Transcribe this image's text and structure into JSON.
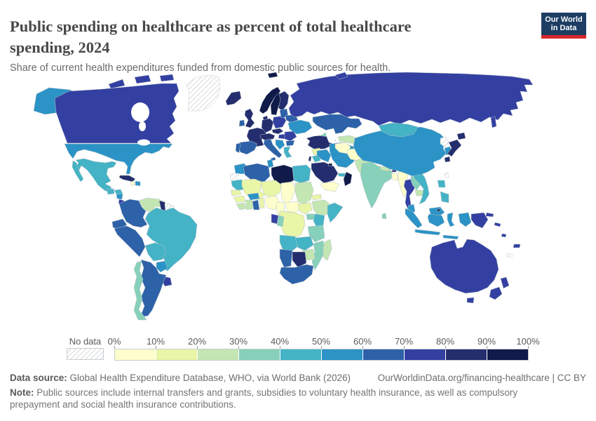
{
  "header": {
    "title": "Public spending on healthcare as percent of total healthcare spending, 2024",
    "subtitle": "Share of current health expenditures funded from domestic public sources for health.",
    "logo": {
      "line1": "Our World",
      "line2": "in Data",
      "bg_color": "#1d3d63",
      "accent_color": "#d7282f"
    }
  },
  "legend": {
    "no_data_label": "No data",
    "tick_labels": [
      "0%",
      "10%",
      "20%",
      "30%",
      "40%",
      "50%",
      "60%",
      "70%",
      "80%",
      "90%",
      "100%"
    ]
  },
  "footer": {
    "data_source_label": "Data source:",
    "data_source_text": " Global Health Expenditure Database, WHO, via World Bank (2026)",
    "link_text": "OurWorldinData.org/financing-healthcare | CC BY",
    "note_label": "Note:",
    "note_text": " Public sources include internal transfers and grants, subsidies to voluntary health insurance, as well as compulsory prepayment and social health insurance contributions."
  },
  "chart_data": {
    "type": "heatmap",
    "subtype": "world-choropleth",
    "title": "Public spending on healthcare as percent of total healthcare spending, 2024",
    "unit": "share of total health spending (%)",
    "legend_position": "bottom",
    "bins": [
      "0-10%",
      "10-20%",
      "20-30%",
      "30-40%",
      "40-50%",
      "50-60%",
      "60-70%",
      "70-80%",
      "80-90%",
      "90-100%"
    ],
    "bin_colors": [
      "#fdfecc",
      "#e9f5a7",
      "#c3e6b2",
      "#87d0ba",
      "#44b3c5",
      "#2b93c6",
      "#2d62a9",
      "#3340a2",
      "#242e6e",
      "#101b4a"
    ],
    "no_data": {
      "label": "No data",
      "pattern": "diagonal-hatch"
    },
    "regions": [
      {
        "name": "United States",
        "bucket": "50-60%"
      },
      {
        "name": "Canada",
        "bucket": "70-80%"
      },
      {
        "name": "Greenland",
        "bucket": "no-data"
      },
      {
        "name": "Mexico",
        "bucket": "40-50%"
      },
      {
        "name": "Guatemala",
        "bucket": "40-50%"
      },
      {
        "name": "Honduras",
        "bucket": "40-50%"
      },
      {
        "name": "Nicaragua",
        "bucket": "50-60%"
      },
      {
        "name": "Costa Rica",
        "bucket": "70-80%"
      },
      {
        "name": "Panama",
        "bucket": "50-60%"
      },
      {
        "name": "Cuba",
        "bucket": "80-90%"
      },
      {
        "name": "Haiti",
        "bucket": "0-10%"
      },
      {
        "name": "Dominican Republic",
        "bucket": "50-60%"
      },
      {
        "name": "Venezuela",
        "bucket": "20-30%"
      },
      {
        "name": "Colombia",
        "bucket": "60-70%"
      },
      {
        "name": "Guyana",
        "bucket": "80-90%"
      },
      {
        "name": "Suriname",
        "bucket": "no-data"
      },
      {
        "name": "French Guiana",
        "bucket": "no-data"
      },
      {
        "name": "Ecuador",
        "bucket": "60-70%"
      },
      {
        "name": "Peru",
        "bucket": "60-70%"
      },
      {
        "name": "Brazil",
        "bucket": "40-50%"
      },
      {
        "name": "Bolivia",
        "bucket": "40-50%"
      },
      {
        "name": "Paraguay",
        "bucket": "50-60%"
      },
      {
        "name": "Uruguay",
        "bucket": "70-80%"
      },
      {
        "name": "Argentina",
        "bucket": "60-70%"
      },
      {
        "name": "Chile",
        "bucket": "30-40%"
      },
      {
        "name": "Iceland",
        "bucket": "80-90%"
      },
      {
        "name": "Norway",
        "bucket": "90-100%"
      },
      {
        "name": "Sweden",
        "bucket": "90-100%"
      },
      {
        "name": "Finland",
        "bucket": "80-90%"
      },
      {
        "name": "Denmark",
        "bucket": "80-90%"
      },
      {
        "name": "United Kingdom",
        "bucket": "80-90%"
      },
      {
        "name": "Ireland",
        "bucket": "60-70%"
      },
      {
        "name": "France",
        "bucket": "80-90%"
      },
      {
        "name": "Spain",
        "bucket": "60-70%"
      },
      {
        "name": "Portugal",
        "bucket": "60-70%"
      },
      {
        "name": "Germany",
        "bucket": "80-90%"
      },
      {
        "name": "Poland",
        "bucket": "70-80%"
      },
      {
        "name": "Czechia",
        "bucket": "80-90%"
      },
      {
        "name": "Austria",
        "bucket": "80-90%"
      },
      {
        "name": "Hungary",
        "bucket": "70-80%"
      },
      {
        "name": "Italy",
        "bucket": "60-70%"
      },
      {
        "name": "Serbia",
        "bucket": "50-60%"
      },
      {
        "name": "Romania",
        "bucket": "70-80%"
      },
      {
        "name": "Bulgaria",
        "bucket": "60-70%"
      },
      {
        "name": "Greece",
        "bucket": "40-50%"
      },
      {
        "name": "Baltic states",
        "bucket": "60-70%"
      },
      {
        "name": "Belarus",
        "bucket": "60-70%"
      },
      {
        "name": "Ukraine",
        "bucket": "50-60%"
      },
      {
        "name": "Russia",
        "bucket": "70-80%"
      },
      {
        "name": "Kazakhstan",
        "bucket": "60-70%"
      },
      {
        "name": "Georgia",
        "bucket": "30-40%"
      },
      {
        "name": "Azerbaijan",
        "bucket": "40-50%"
      },
      {
        "name": "Turkey",
        "bucket": "80-90%"
      },
      {
        "name": "Syria",
        "bucket": "10-20%"
      },
      {
        "name": "Israel",
        "bucket": "80-90%"
      },
      {
        "name": "Jordan",
        "bucket": "40-50%"
      },
      {
        "name": "Iraq",
        "bucket": "50-60%"
      },
      {
        "name": "Iran",
        "bucket": "50-60%"
      },
      {
        "name": "Saudi Arabia",
        "bucket": "80-90%"
      },
      {
        "name": "Kuwait",
        "bucket": "90-100%"
      },
      {
        "name": "United Arab Emirates",
        "bucket": "40-50%"
      },
      {
        "name": "Oman",
        "bucket": "90-100%"
      },
      {
        "name": "Yemen",
        "bucket": "0-10%"
      },
      {
        "name": "Turkmenistan",
        "bucket": "0-10%"
      },
      {
        "name": "Uzbekistan",
        "bucket": "20-30%"
      },
      {
        "name": "Kyrgyzstan",
        "bucket": "40-50%"
      },
      {
        "name": "Tajikistan",
        "bucket": "30-40%"
      },
      {
        "name": "Afghanistan",
        "bucket": "0-10%"
      },
      {
        "name": "Pakistan",
        "bucket": "20-30%"
      },
      {
        "name": "India",
        "bucket": "30-40%"
      },
      {
        "name": "Nepal",
        "bucket": "20-30%"
      },
      {
        "name": "Bhutan",
        "bucket": "80-90%"
      },
      {
        "name": "Bangladesh",
        "bucket": "0-10%"
      },
      {
        "name": "Sri Lanka",
        "bucket": "30-40%"
      },
      {
        "name": "Myanmar",
        "bucket": "0-10%"
      },
      {
        "name": "Thailand",
        "bucket": "70-80%"
      },
      {
        "name": "Laos",
        "bucket": "30-40%"
      },
      {
        "name": "Cambodia",
        "bucket": "20-30%"
      },
      {
        "name": "Vietnam",
        "bucket": "40-50%"
      },
      {
        "name": "Malaysia",
        "bucket": "50-60%"
      },
      {
        "name": "Brunei",
        "bucket": "90-100%"
      },
      {
        "name": "Indonesia",
        "bucket": "50-60%"
      },
      {
        "name": "Papua New Guinea",
        "bucket": "70-80%"
      },
      {
        "name": "Philippines",
        "bucket": "40-50%"
      },
      {
        "name": "Taiwan",
        "bucket": "no-data"
      },
      {
        "name": "China",
        "bucket": "50-60%"
      },
      {
        "name": "Mongolia",
        "bucket": "40-50%"
      },
      {
        "name": "North Korea",
        "bucket": "no-data"
      },
      {
        "name": "South Korea",
        "bucket": "50-60%"
      },
      {
        "name": "Japan",
        "bucket": "80-90%"
      },
      {
        "name": "Australia",
        "bucket": "70-80%"
      },
      {
        "name": "New Zealand",
        "bucket": "70-80%"
      },
      {
        "name": "Fiji",
        "bucket": "70-80%"
      },
      {
        "name": "New Caledonia",
        "bucket": "no-data"
      },
      {
        "name": "Solomon Islands",
        "bucket": "70-80%"
      },
      {
        "name": "Vanuatu",
        "bucket": "70-80%"
      },
      {
        "name": "Morocco",
        "bucket": "50-60%"
      },
      {
        "name": "Western Sahara",
        "bucket": "no-data"
      },
      {
        "name": "Mauritania",
        "bucket": "40-50%"
      },
      {
        "name": "Algeria",
        "bucket": "60-70%"
      },
      {
        "name": "Tunisia",
        "bucket": "50-60%"
      },
      {
        "name": "Libya",
        "bucket": "90-100%"
      },
      {
        "name": "Egypt",
        "bucket": "40-50%"
      },
      {
        "name": "Mali",
        "bucket": "10-20%"
      },
      {
        "name": "Niger",
        "bucket": "10-20%"
      },
      {
        "name": "Chad",
        "bucket": "0-10%"
      },
      {
        "name": "Sudan",
        "bucket": "20-30%"
      },
      {
        "name": "Senegal",
        "bucket": "10-20%"
      },
      {
        "name": "Guinea",
        "bucket": "10-20%"
      },
      {
        "name": "Liberia",
        "bucket": "20-30%"
      },
      {
        "name": "Cote d'Ivoire",
        "bucket": "20-30%"
      },
      {
        "name": "Burkina Faso",
        "bucket": "50-60%"
      },
      {
        "name": "Ghana",
        "bucket": "60-70%"
      },
      {
        "name": "Benin",
        "bucket": "10-20%"
      },
      {
        "name": "Nigeria",
        "bucket": "0-10%"
      },
      {
        "name": "Cameroon",
        "bucket": "0-10%"
      },
      {
        "name": "Central African Republic",
        "bucket": "0-10%"
      },
      {
        "name": "South Sudan",
        "bucket": "10-20%"
      },
      {
        "name": "Ethiopia",
        "bucket": "20-30%"
      },
      {
        "name": "Eritrea",
        "bucket": "10-20%"
      },
      {
        "name": "Somalia",
        "bucket": "40-50%"
      },
      {
        "name": "Uganda",
        "bucket": "30-40%"
      },
      {
        "name": "Kenya",
        "bucket": "40-50%"
      },
      {
        "name": "Democratic Republic of Congo",
        "bucket": "10-20%"
      },
      {
        "name": "Gabon",
        "bucket": "70-80%"
      },
      {
        "name": "Congo",
        "bucket": "30-40%"
      },
      {
        "name": "Angola",
        "bucket": "40-50%"
      },
      {
        "name": "Zambia",
        "bucket": "40-50%"
      },
      {
        "name": "Tanzania",
        "bucket": "30-40%"
      },
      {
        "name": "Mozambique",
        "bucket": "30-40%"
      },
      {
        "name": "Zimbabwe",
        "bucket": "20-30%"
      },
      {
        "name": "Madagascar",
        "bucket": "20-30%"
      },
      {
        "name": "Namibia",
        "bucket": "60-70%"
      },
      {
        "name": "Botswana",
        "bucket": "80-90%"
      },
      {
        "name": "South Africa",
        "bucket": "60-70%"
      }
    ]
  }
}
